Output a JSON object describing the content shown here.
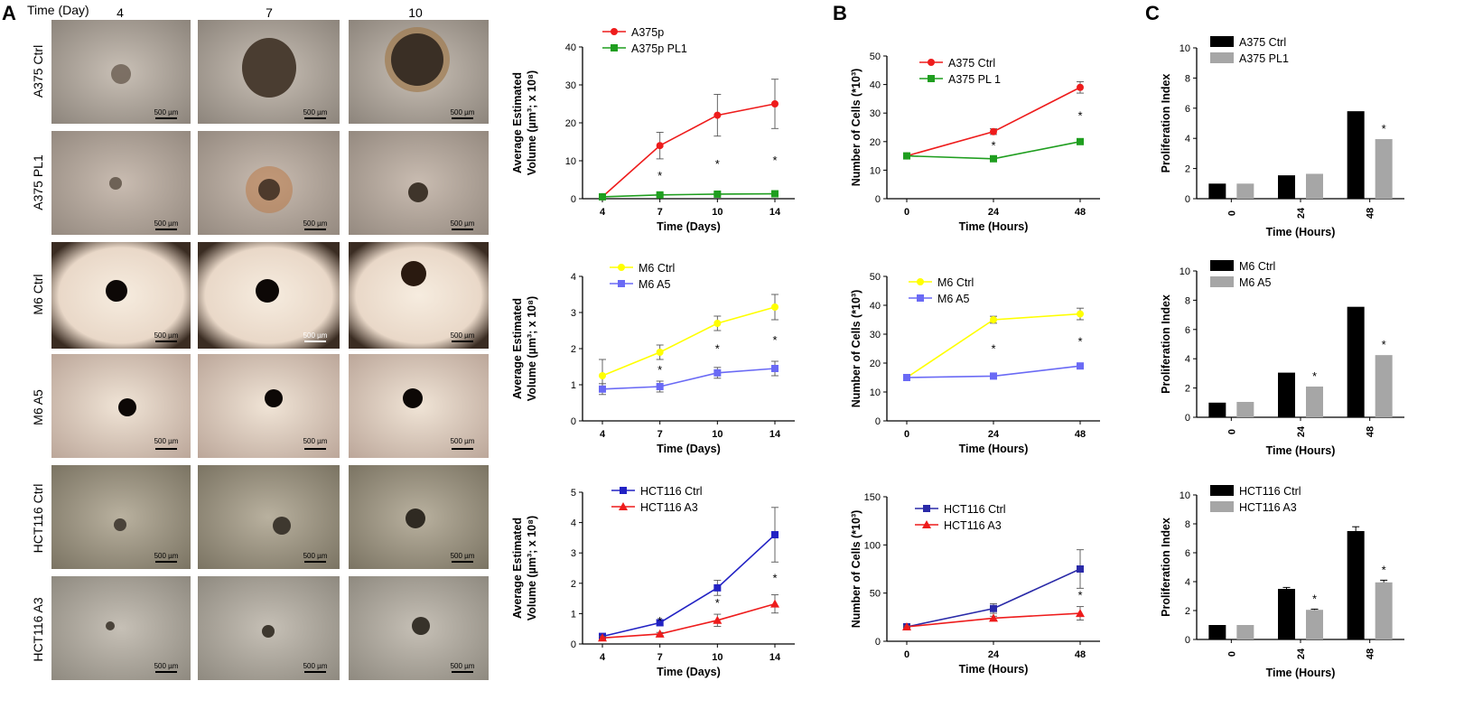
{
  "panel_letters": [
    "A",
    "B",
    "C"
  ],
  "micrographs": {
    "time_header": "Time (Day)",
    "days": [
      "4",
      "7",
      "10"
    ],
    "rows": [
      "A375 Ctrl",
      "A375 PL1",
      "M6 Ctrl",
      "M6 A5",
      "HCT116 Ctrl",
      "HCT116 A3"
    ],
    "scale_bar": "500 µm"
  },
  "colors": {
    "red": "#ee1c1c",
    "green": "#1f9e1f",
    "yellow": "#ffff00",
    "lavender": "#6a6af5",
    "navy": "#2a2aa8",
    "bar_black": "#000000",
    "bar_gray": "#a6a6a6"
  },
  "chart_data": [
    {
      "id": "A1",
      "type": "line",
      "title": "",
      "xlabel": "Time (Days)",
      "ylabel": "Average Estimated Volume (µm³; x 10⁸)",
      "categories": [
        "4",
        "7",
        "10",
        "14"
      ],
      "ylim": [
        0,
        40
      ],
      "yticks": [
        0,
        10,
        20,
        30,
        40
      ],
      "series": [
        {
          "name": "A375p",
          "color": "#ee1c1c",
          "marker": "circle",
          "values": [
            0.5,
            14,
            22,
            25
          ],
          "errors": [
            0.3,
            3.5,
            5.5,
            6.5
          ]
        },
        {
          "name": "A375p PL1",
          "color": "#1f9e1f",
          "marker": "square",
          "values": [
            0.5,
            1,
            1.2,
            1.3
          ],
          "errors": [
            0.2,
            0.3,
            0.3,
            0.3
          ]
        }
      ],
      "annotations": [
        "",
        "*",
        "*",
        "*"
      ]
    },
    {
      "id": "A2",
      "type": "line",
      "title": "",
      "xlabel": "Time (Days)",
      "ylabel": "Average Estimated Volume (µm³; x 10⁸)",
      "categories": [
        "4",
        "7",
        "10",
        "14"
      ],
      "ylim": [
        0,
        4
      ],
      "yticks": [
        0,
        1,
        2,
        3,
        4
      ],
      "series": [
        {
          "name": "M6 Ctrl",
          "color": "#ffff00",
          "marker": "circle",
          "values": [
            1.25,
            1.9,
            2.7,
            3.15
          ],
          "errors": [
            0.45,
            0.2,
            0.2,
            0.35
          ]
        },
        {
          "name": "M6 A5",
          "color": "#6a6af5",
          "marker": "square",
          "values": [
            0.88,
            0.95,
            1.33,
            1.45
          ],
          "errors": [
            0.15,
            0.15,
            0.15,
            0.2
          ]
        }
      ],
      "annotations": [
        "",
        "*",
        "*",
        "*"
      ]
    },
    {
      "id": "A3",
      "type": "line",
      "title": "",
      "xlabel": "Time (Days)",
      "ylabel": "Average Estimated Volume (µm³; x 10⁸)",
      "categories": [
        "4",
        "7",
        "10",
        "14"
      ],
      "ylim": [
        0,
        5
      ],
      "yticks": [
        0,
        1,
        2,
        3,
        4,
        5
      ],
      "series": [
        {
          "name": "HCT116 Ctrl",
          "color": "#2222c4",
          "marker": "square",
          "values": [
            0.25,
            0.7,
            1.85,
            3.6
          ],
          "errors": [
            0.05,
            0.1,
            0.25,
            0.9
          ]
        },
        {
          "name": "HCT116 A3",
          "color": "#ee1c1c",
          "marker": "triangle",
          "values": [
            0.2,
            0.33,
            0.78,
            1.32
          ],
          "errors": [
            0.05,
            0.05,
            0.2,
            0.3
          ]
        }
      ],
      "annotations": [
        "",
        "*",
        "*",
        "*"
      ]
    },
    {
      "id": "B1",
      "type": "line",
      "title": "",
      "xlabel": "Time (Hours)",
      "ylabel": "Number of Cells (*10³)",
      "categories": [
        "0",
        "24",
        "48"
      ],
      "ylim": [
        0,
        50
      ],
      "yticks": [
        0,
        10,
        20,
        30,
        40,
        50
      ],
      "series": [
        {
          "name": "A375 Ctrl",
          "color": "#ee1c1c",
          "marker": "circle",
          "values": [
            15,
            23.5,
            39
          ],
          "errors": [
            0.5,
            1,
            2
          ]
        },
        {
          "name": "A375 PL 1",
          "color": "#1f9e1f",
          "marker": "square",
          "values": [
            15,
            14,
            20
          ],
          "errors": [
            0.5,
            0.5,
            0.8
          ]
        }
      ],
      "annotations": [
        "",
        "*",
        "*"
      ]
    },
    {
      "id": "B2",
      "type": "line",
      "title": "",
      "xlabel": "Time (Hours)",
      "ylabel": "Number of Cells (*10³)",
      "categories": [
        "0",
        "24",
        "48"
      ],
      "ylim": [
        0,
        50
      ],
      "yticks": [
        0,
        10,
        20,
        30,
        40,
        50
      ],
      "series": [
        {
          "name": "M6 Ctrl",
          "color": "#ffff00",
          "marker": "circle",
          "values": [
            15,
            35,
            37
          ],
          "errors": [
            1,
            1.2,
            2
          ]
        },
        {
          "name": "M6 A5",
          "color": "#6a6af5",
          "marker": "square",
          "values": [
            15,
            15.5,
            19
          ],
          "errors": [
            0.5,
            0.5,
            0.8
          ]
        }
      ],
      "annotations": [
        "",
        "*",
        "*"
      ]
    },
    {
      "id": "B3",
      "type": "line",
      "title": "",
      "xlabel": "Time (Hours)",
      "ylabel": "Number of Cells (*10³)",
      "categories": [
        "0",
        "24",
        "48"
      ],
      "ylim": [
        0,
        150
      ],
      "yticks": [
        0,
        50,
        100,
        150
      ],
      "series": [
        {
          "name": "HCT116 Ctrl",
          "color": "#2a2aa8",
          "marker": "square",
          "values": [
            15,
            34,
            75
          ],
          "errors": [
            1,
            5,
            20
          ]
        },
        {
          "name": "HCT116 A3",
          "color": "#ee1c1c",
          "marker": "triangle",
          "values": [
            15,
            24,
            29
          ],
          "errors": [
            1,
            2,
            7
          ]
        }
      ],
      "annotations": [
        "",
        "",
        "*"
      ]
    },
    {
      "id": "C1",
      "type": "bar",
      "title": "",
      "xlabel": "Time (Hours)",
      "ylabel": "Proliferation Index",
      "categories": [
        "0",
        "24",
        "48"
      ],
      "ylim": [
        0,
        10
      ],
      "yticks": [
        0,
        2,
        4,
        6,
        8,
        10
      ],
      "series": [
        {
          "name": "A375 Ctrl",
          "color": "#000000",
          "values": [
            1,
            1.55,
            5.8
          ],
          "errors": [
            0,
            0,
            0
          ]
        },
        {
          "name": "A375 PL1",
          "color": "#a6a6a6",
          "values": [
            1,
            1.65,
            3.95
          ],
          "errors": [
            0,
            0,
            0
          ]
        }
      ],
      "annotations": [
        "",
        "",
        "*"
      ]
    },
    {
      "id": "C2",
      "type": "bar",
      "title": "",
      "xlabel": "Time (Hours)",
      "ylabel": "Proliferation Index",
      "categories": [
        "0",
        "24",
        "48"
      ],
      "ylim": [
        0,
        10
      ],
      "yticks": [
        0,
        2,
        4,
        6,
        8,
        10
      ],
      "series": [
        {
          "name": "M6 Ctrl",
          "color": "#000000",
          "values": [
            1,
            3.05,
            7.55
          ],
          "errors": [
            0,
            0,
            0
          ]
        },
        {
          "name": "M6 A5",
          "color": "#a6a6a6",
          "values": [
            1.05,
            2.1,
            4.25
          ],
          "errors": [
            0,
            0,
            0
          ]
        }
      ],
      "annotations": [
        "",
        "*",
        "*"
      ]
    },
    {
      "id": "C3",
      "type": "bar",
      "title": "",
      "xlabel": "Time (Hours)",
      "ylabel": "Proliferation Index",
      "categories": [
        "0",
        "24",
        "48"
      ],
      "ylim": [
        0,
        10
      ],
      "yticks": [
        0,
        2,
        4,
        6,
        8,
        10
      ],
      "series": [
        {
          "name": "HCT116 Ctrl",
          "color": "#000000",
          "values": [
            1,
            3.5,
            7.5
          ],
          "errors": [
            0,
            0.1,
            0.3
          ]
        },
        {
          "name": "HCT116 A3",
          "color": "#a6a6a6",
          "values": [
            1,
            2.05,
            3.95
          ],
          "errors": [
            0,
            0.05,
            0.15
          ]
        }
      ],
      "annotations": [
        "",
        "*",
        "*"
      ]
    }
  ]
}
